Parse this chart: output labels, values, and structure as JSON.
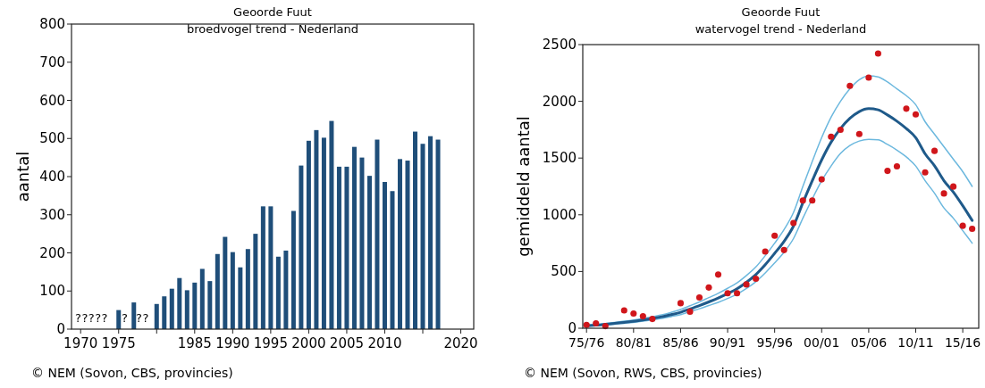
{
  "chart_data": [
    {
      "type": "bar",
      "title": "Geoorde Fuut",
      "subtitle": "broedvogel trend - Nederland",
      "ylabel": "aantal",
      "x": [
        1975,
        1977,
        1980,
        1981,
        1982,
        1983,
        1984,
        1985,
        1986,
        1987,
        1988,
        1989,
        1990,
        1991,
        1992,
        1993,
        1994,
        1995,
        1996,
        1997,
        1998,
        1999,
        2000,
        2001,
        2002,
        2003,
        2004,
        2005,
        2006,
        2007,
        2008,
        2009,
        2010,
        2011,
        2012,
        2013,
        2014,
        2015,
        2016,
        2017
      ],
      "values": [
        50,
        70,
        66,
        86,
        106,
        134,
        102,
        122,
        158,
        126,
        197,
        242,
        202,
        162,
        210,
        250,
        322,
        322,
        190,
        206,
        310,
        429,
        494,
        522,
        502,
        546,
        426,
        426,
        478,
        450,
        402,
        497,
        386,
        362,
        446,
        442,
        518,
        486,
        506,
        497
      ],
      "color": "#1f4e79",
      "xlim": [
        1968.8,
        2021.7
      ],
      "xticks": [
        1970,
        1975,
        {
          "value": 1980,
          "label": null
        },
        1985,
        1990,
        1995,
        2000,
        2005,
        2010,
        {
          "value": 2015,
          "label": null
        },
        2020
      ],
      "ylim": [
        0,
        800
      ],
      "yticks": [
        0,
        100,
        200,
        300,
        400,
        500,
        600,
        700,
        800
      ],
      "grid": false,
      "annotations": [
        "?????",
        "?",
        "??",
        "© NEM (Sovon, CBS, provincies)"
      ]
    },
    {
      "type": "scatter",
      "title": "Geoorde Fuut",
      "subtitle": "watervogel trend - Nederland",
      "ylabel": "gemiddeld aantal",
      "categories": [
        "75/76",
        null,
        null,
        null,
        null,
        "80/81",
        null,
        null,
        null,
        null,
        "85/86",
        null,
        null,
        null,
        null,
        "90/91",
        null,
        null,
        null,
        null,
        "95/96",
        null,
        null,
        null,
        null,
        "00/01",
        null,
        null,
        null,
        null,
        "05/06",
        null,
        null,
        null,
        null,
        "10/11",
        null,
        null,
        null,
        null,
        "15/16",
        null
      ],
      "series": [
        {
          "color": "#d0161b",
          "marker": "circle",
          "values": [
            29,
            43,
            19,
            null,
            157,
            130,
            106,
            82,
            null,
            null,
            221,
            146,
            271,
            359,
            473,
            309,
            309,
            386,
            436,
            676,
            816,
            689,
            928,
            1126,
            1126,
            1312,
            1688,
            1749,
            2136,
            1712,
            2209,
            2421,
            1387,
            1427,
            1935,
            1885,
            1374,
            1563,
            1188,
            1249,
            903,
            877
          ]
        },
        {
          "type": "line",
          "color": "#6cb8de",
          "values": [
            26,
            33,
            42,
            52,
            62,
            72,
            86,
            101,
            118,
            140,
            165,
            198,
            232,
            270,
            308,
            352,
            400,
            465,
            540,
            640,
            750,
            870,
            1020,
            1250,
            1470,
            1680,
            1860,
            2000,
            2110,
            2190,
            2225,
            2215,
            2170,
            2110,
            2050,
            1970,
            1820,
            1710,
            1600,
            1490,
            1380,
            1250
          ]
        },
        {
          "type": "line",
          "color": "#6cb8de",
          "values": [
            17,
            22,
            29,
            36,
            44,
            52,
            62,
            74,
            87,
            103,
            120,
            146,
            172,
            200,
            228,
            262,
            300,
            350,
            410,
            488,
            575,
            670,
            790,
            970,
            1140,
            1300,
            1430,
            1540,
            1610,
            1650,
            1665,
            1660,
            1620,
            1570,
            1510,
            1430,
            1300,
            1190,
            1060,
            970,
            860,
            750
          ]
        },
        {
          "type": "line",
          "color": "#1f5a8a",
          "values": [
            21,
            27,
            35,
            43,
            52,
            61,
            73,
            86,
            101,
            120,
            141,
            170,
            200,
            232,
            266,
            305,
            348,
            405,
            473,
            560,
            660,
            766,
            900,
            1105,
            1300,
            1484,
            1640,
            1760,
            1850,
            1910,
            1935,
            1925,
            1880,
            1825,
            1760,
            1680,
            1537,
            1432,
            1301,
            1200,
            1080,
            950
          ]
        }
      ],
      "line_style": "solid",
      "grid": false,
      "ylim": [
        0,
        2500
      ],
      "yticks": [
        0,
        500,
        1000,
        1500,
        2000,
        2500
      ],
      "annotations": [
        "© NEM (Sovon, RWS, CBS, provincies)"
      ]
    }
  ]
}
